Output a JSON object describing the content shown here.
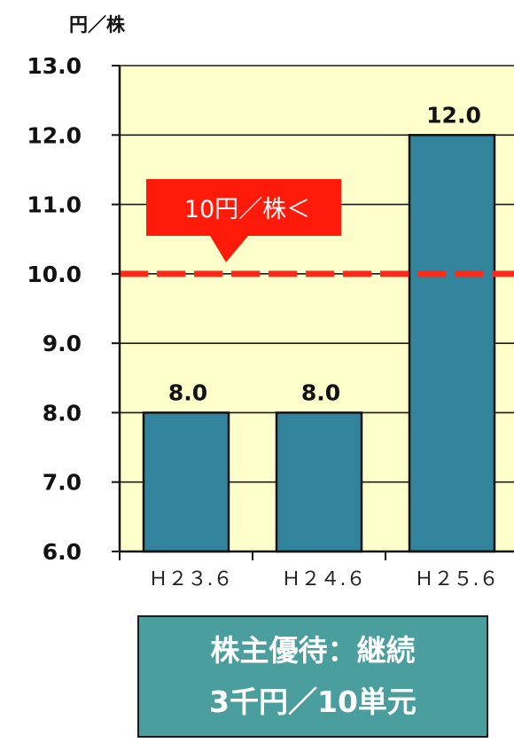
{
  "chart_data": {
    "type": "bar",
    "unit_label": "円／株",
    "categories": [
      "H23.6",
      "H24.6",
      "H25.6"
    ],
    "category_labels": [
      "Ｈ２３.６",
      "Ｈ２４.６",
      "Ｈ２５.６"
    ],
    "values": [
      8.0,
      8.0,
      12.0
    ],
    "data_labels": [
      "8.0",
      "8.0",
      "12.0"
    ],
    "ylim": [
      6.0,
      13.0
    ],
    "yticks": [
      6.0,
      7.0,
      8.0,
      9.0,
      10.0,
      11.0,
      12.0,
      13.0
    ],
    "ytick_labels": [
      "6.0",
      "7.0",
      "8.0",
      "9.0",
      "10.0",
      "11.0",
      "12.0",
      "13.0"
    ],
    "grid": true,
    "reference_line": {
      "value": 10.0,
      "style": "dashed",
      "color": "#ff2a1a"
    },
    "callout": {
      "text": "10円／株＜"
    },
    "colors": {
      "bar": "#31849b",
      "plot_background": "#ffffcc",
      "callout": "#ff1a0a"
    }
  },
  "note": {
    "line1": "株主優待：継続",
    "line2": "3千円／10単元"
  }
}
